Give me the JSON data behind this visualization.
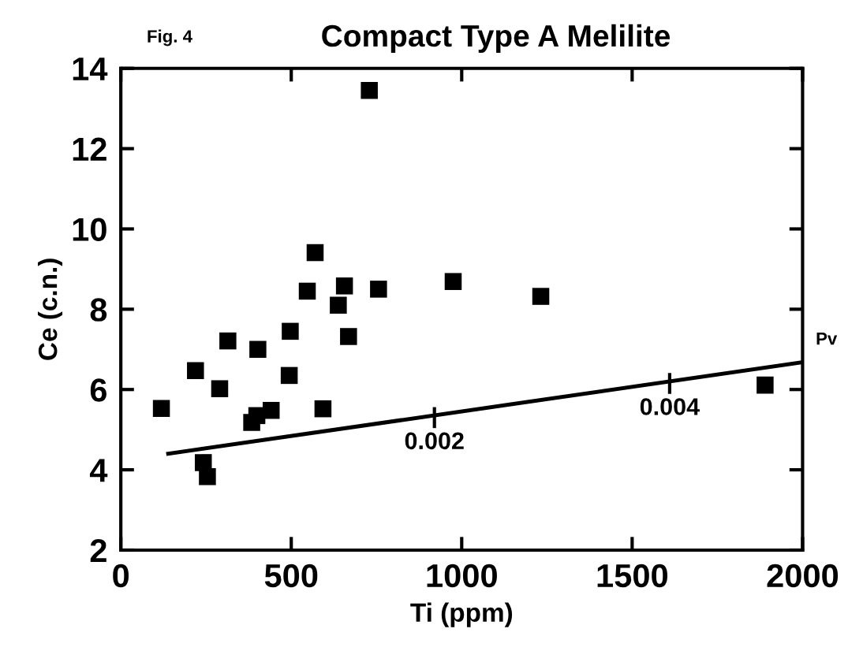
{
  "chart_data": {
    "type": "scatter",
    "title": "Compact Type A Melilite",
    "xlabel": "Ti (ppm)",
    "ylabel": "Ce (c.n.)",
    "annotations": [
      "Fig. 4",
      {
        "text": "0.002",
        "x": 920,
        "y": 5.3
      },
      {
        "text": "0.004",
        "x": 1610,
        "y": 6.15
      },
      {
        "text": "Pv",
        "x": 2000,
        "y": 6.68
      }
    ],
    "series": [
      {
        "color": "#000000",
        "marker": "square",
        "x": [
          119,
          219,
          290,
          314,
          242,
          254,
          384,
          399,
          441,
          402,
          494,
          497,
          593,
          547,
          638,
          656,
          668,
          756,
          975,
          1232,
          1890,
          729,
          570
        ],
        "values": [
          5.53,
          6.47,
          6.02,
          7.21,
          4.18,
          3.83,
          5.18,
          5.35,
          5.48,
          7.0,
          6.35,
          7.45,
          5.52,
          8.45,
          8.1,
          8.58,
          7.32,
          8.5,
          8.69,
          8.32,
          6.11,
          13.45,
          9.41
        ]
      },
      {
        "type": "line",
        "color": "#000000",
        "marker": "none",
        "line_style": "solid",
        "x": [
          139,
          2000
        ],
        "values": [
          4.4,
          6.68
        ]
      }
    ],
    "xlim": [
      0,
      2000
    ],
    "ylim": [
      2,
      14
    ],
    "xticks": [
      0,
      500,
      1000,
      1500,
      2000
    ],
    "yticks": [
      2,
      4,
      6,
      8,
      10,
      12,
      14
    ],
    "grid": false,
    "legend": false
  }
}
